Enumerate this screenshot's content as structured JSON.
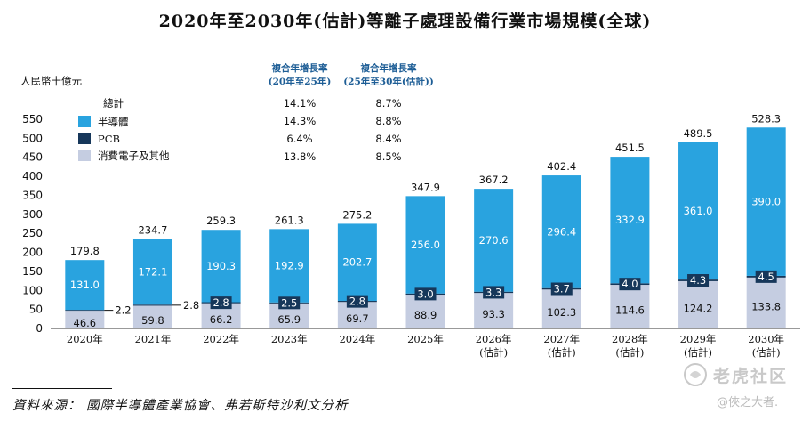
{
  "chart_data": {
    "type": "bar",
    "stacked": true,
    "title": "2020年至2030年(估計)等離子處理設備行業市場規模(全球)",
    "ylabel": "人民幣十億元",
    "xlabel": "",
    "ylim": [
      0,
      550
    ],
    "yticks": [
      0,
      50,
      100,
      150,
      200,
      250,
      300,
      350,
      400,
      450,
      500,
      550
    ],
    "categories": [
      "2020年",
      "2021年",
      "2022年",
      "2023年",
      "2024年",
      "2025年",
      "2026年\n(估計)",
      "2027年\n(估計)",
      "2028年\n(估計)",
      "2029年\n(估計)",
      "2030年\n(估計)"
    ],
    "series": [
      {
        "name": "消費電子及其他",
        "color": "#c5cde1",
        "values": [
          46.6,
          59.8,
          66.2,
          65.9,
          69.7,
          88.9,
          93.3,
          102.3,
          114.6,
          124.2,
          133.8
        ]
      },
      {
        "name": "PCB",
        "color": "#16375a",
        "values": [
          2.2,
          2.8,
          2.8,
          2.5,
          2.8,
          3.0,
          3.3,
          3.7,
          4.0,
          4.3,
          4.5
        ]
      },
      {
        "name": "半導體",
        "color": "#29a3df",
        "values": [
          131.0,
          172.1,
          190.3,
          192.9,
          202.7,
          256.0,
          270.6,
          296.4,
          332.9,
          361.0,
          390.0
        ]
      }
    ],
    "totals": [
      179.8,
      234.7,
      259.3,
      261.3,
      275.2,
      347.9,
      367.2,
      402.4,
      451.5,
      489.5,
      528.3
    ],
    "legend_position": "top-left",
    "cagr_table": {
      "header_1": [
        "複合年增長率",
        "(20年至25年)"
      ],
      "header_2": [
        "複合年增長率",
        "(25年至30年(估計))"
      ],
      "rows": [
        {
          "label": "總計",
          "c1": "14.1%",
          "c2": "8.7%"
        },
        {
          "label": "半導體",
          "c1": "14.3%",
          "c2": "8.8%"
        },
        {
          "label": "PCB",
          "c1": "6.4%",
          "c2": "8.4%"
        },
        {
          "label": "消費電子及其他",
          "c1": "13.8%",
          "c2": "8.5%"
        }
      ]
    }
  },
  "source": "資料來源： 國際半導體產業協會、弗若斯特沙利文分析",
  "watermark": {
    "brand": "老虎社区",
    "author": "@俠之大者."
  }
}
